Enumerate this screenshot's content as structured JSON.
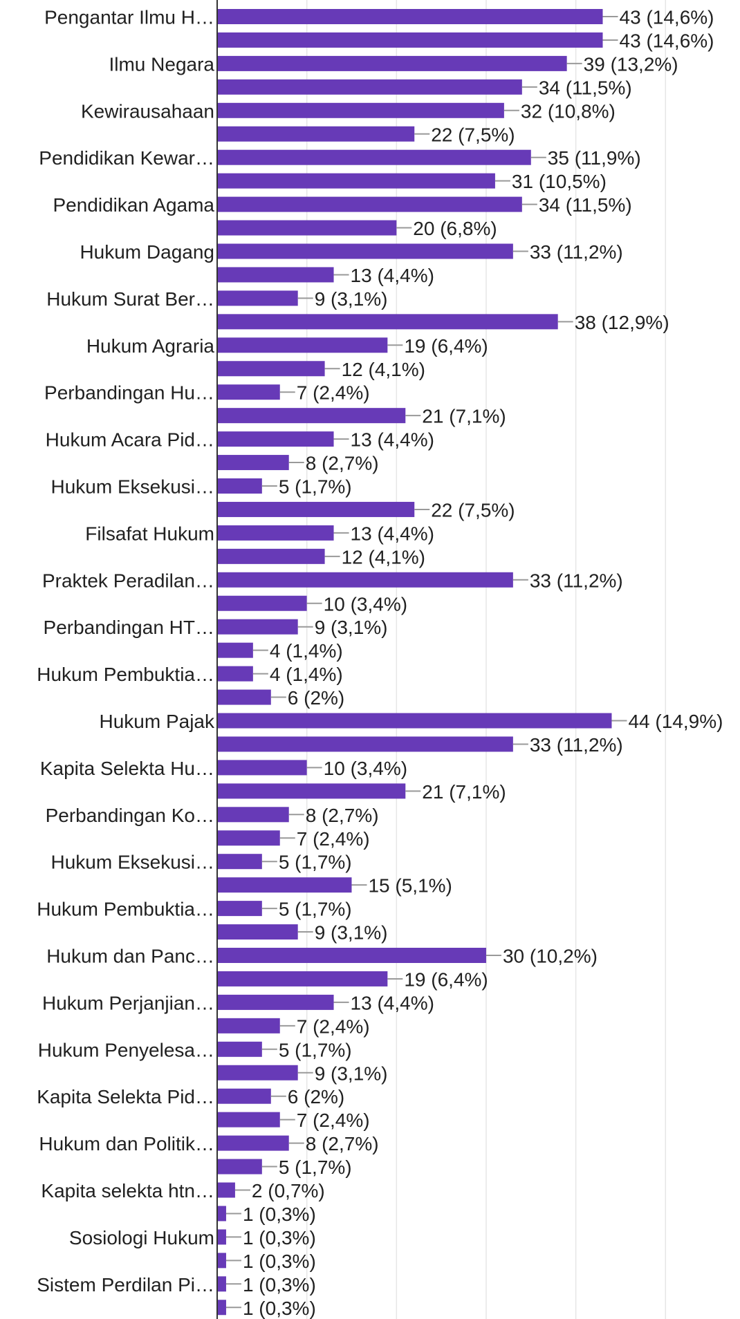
{
  "chart_data": {
    "type": "bar",
    "orientation": "horizontal",
    "color": "#673ab7",
    "grid": true,
    "categories": [
      "Pengantar Ilmu H…",
      null,
      "Ilmu Negara",
      null,
      "Kewirausahaan",
      null,
      "Pendidikan Kewar…",
      null,
      "Pendidikan Agama",
      null,
      "Hukum Dagang",
      null,
      "Hukum Surat Ber…",
      null,
      "Hukum Agraria",
      null,
      "Perbandingan Hu…",
      null,
      "Hukum Acara Pid…",
      null,
      "Hukum Eksekusi…",
      null,
      "Filsafat Hukum",
      null,
      "Praktek Peradilan…",
      null,
      "Perbandingan HT…",
      null,
      "Hukum Pembuktia…",
      null,
      "Hukum Pajak",
      null,
      "Kapita Selekta Hu…",
      null,
      "Perbandingan Ko…",
      null,
      "Hukum Eksekusi…",
      null,
      "Hukum Pembuktia…",
      null,
      "Hukum dan Panc…",
      null,
      "Hukum Perjanjian…",
      null,
      "Hukum Penyelesa…",
      null,
      "Kapita Selekta Pid…",
      null,
      "Hukum dan Politik…",
      null,
      "Kapita selekta htn…",
      null,
      "Sosiologi Hukum",
      null,
      "Sistem Perdilan Pi…",
      null
    ],
    "values": [
      43,
      43,
      39,
      34,
      32,
      22,
      35,
      31,
      34,
      20,
      33,
      13,
      9,
      38,
      19,
      12,
      7,
      21,
      13,
      8,
      5,
      22,
      13,
      12,
      33,
      10,
      9,
      4,
      4,
      6,
      44,
      33,
      10,
      21,
      8,
      7,
      5,
      15,
      5,
      9,
      30,
      19,
      13,
      7,
      5,
      9,
      6,
      7,
      8,
      5,
      2,
      1,
      1,
      1,
      1,
      1
    ],
    "value_labels": [
      "43 (14,6%)",
      "43 (14,6%)",
      "39 (13,2%)",
      "34 (11,5%)",
      "32 (10,8%)",
      "22 (7,5%)",
      "35 (11,9%)",
      "31 (10,5%)",
      "34 (11,5%)",
      "20 (6,8%)",
      "33 (11,2%)",
      "13 (4,4%)",
      "9 (3,1%)",
      "38 (12,9%)",
      "19 (6,4%)",
      "12 (4,1%)",
      "7 (2,4%)",
      "21 (7,1%)",
      "13 (4,4%)",
      "8 (2,7%)",
      "5 (1,7%)",
      "22 (7,5%)",
      "13 (4,4%)",
      "12 (4,1%)",
      "33 (11,2%)",
      "10 (3,4%)",
      "9 (3,1%)",
      "4 (1,4%)",
      "4 (1,4%)",
      "6 (2%)",
      "44 (14,9%)",
      "33 (11,2%)",
      "10 (3,4%)",
      "21 (7,1%)",
      "8 (2,7%)",
      "7 (2,4%)",
      "5 (1,7%)",
      "15 (5,1%)",
      "5 (1,7%)",
      "9 (3,1%)",
      "30 (10,2%)",
      "19 (6,4%)",
      "13 (4,4%)",
      "7 (2,4%)",
      "5 (1,7%)",
      "9 (3,1%)",
      "6 (2%)",
      "7 (2,4%)",
      "8 (2,7%)",
      "5 (1,7%)",
      "2 (0,7%)",
      "1 (0,3%)",
      "1 (0,3%)",
      "1 (0,3%)",
      "1 (0,3%)",
      "1 (0,3%)"
    ],
    "xlim": [
      0,
      58
    ],
    "xticks": [
      0,
      10,
      20,
      30,
      40,
      50
    ]
  }
}
